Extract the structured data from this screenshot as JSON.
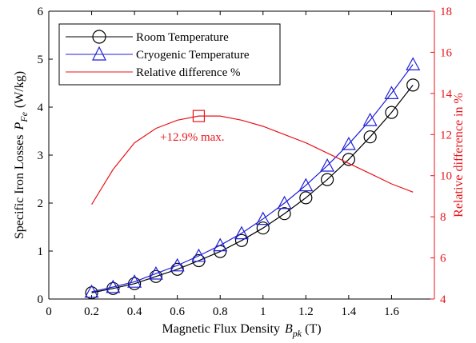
{
  "chart_data": {
    "type": "line",
    "xlabel": "Magnetic Flux Density",
    "xlabel_symbol": "B",
    "xlabel_sub": "pk",
    "xlabel_unit": "(T)",
    "ylabel": "Specific Iron Losses",
    "ylabel_symbol": "P",
    "ylabel_sub": "Fe",
    "ylabel_unit": "(W/kg)",
    "y2label": "Relative difference in %",
    "xlim": [
      0,
      1.8
    ],
    "ylim": [
      0,
      6
    ],
    "y2lim": [
      4,
      18
    ],
    "xticks": [
      "0",
      "0.2",
      "0.4",
      "0.6",
      "0.8",
      "1",
      "1.2",
      "1.4",
      "1.6"
    ],
    "yticks": [
      "0",
      "1",
      "2",
      "3",
      "4",
      "5",
      "6"
    ],
    "y2ticks": [
      "4",
      "6",
      "8",
      "10",
      "12",
      "14",
      "16",
      "18"
    ],
    "x": [
      0.2,
      0.3,
      0.4,
      0.5,
      0.6,
      0.7,
      0.8,
      0.9,
      1.0,
      1.1,
      1.2,
      1.3,
      1.4,
      1.5,
      1.6,
      1.7
    ],
    "series": [
      {
        "name": "Room Temperature",
        "axis": "left",
        "marker": "circle",
        "color": "#000000",
        "values": [
          0.13,
          0.22,
          0.32,
          0.47,
          0.62,
          0.8,
          0.99,
          1.22,
          1.48,
          1.78,
          2.11,
          2.49,
          2.91,
          3.38,
          3.89,
          4.46
        ]
      },
      {
        "name": "Cryogenic Temperature",
        "axis": "left",
        "marker": "triangle",
        "color": "#1f1fd8",
        "values": [
          0.15,
          0.25,
          0.36,
          0.53,
          0.7,
          0.9,
          1.12,
          1.37,
          1.67,
          2.0,
          2.37,
          2.78,
          3.23,
          3.73,
          4.29,
          4.89
        ]
      },
      {
        "name": "Relative difference %",
        "axis": "right",
        "marker": "none",
        "color": "#e8141a",
        "values": [
          8.6,
          10.3,
          11.6,
          12.3,
          12.7,
          12.9,
          12.9,
          12.7,
          12.4,
          12.0,
          11.6,
          11.1,
          10.6,
          10.1,
          9.6,
          9.2
        ]
      }
    ],
    "annotation": {
      "text": "+12.9% max.",
      "x": 0.7,
      "y2": 12.9
    },
    "grid": false,
    "legend_position": "top-left"
  },
  "colors": {
    "axis": "#000000",
    "right_axis": "#e8141a",
    "room": "#000000",
    "cryo": "#1f1fd8",
    "relative": "#e8141a"
  }
}
